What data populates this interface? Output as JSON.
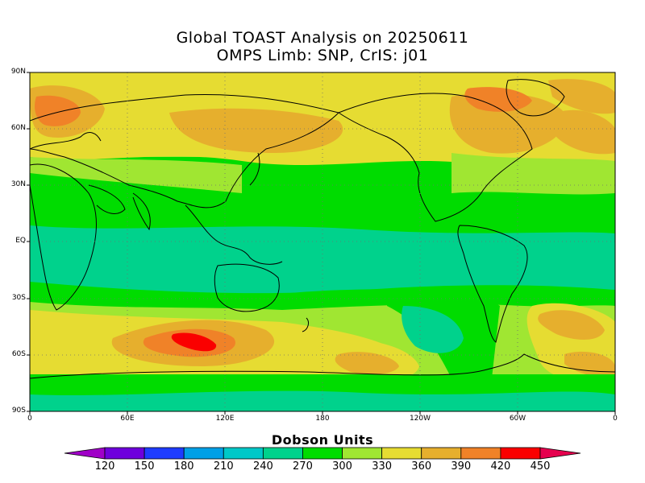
{
  "title_line1": "Global TOAST Analysis on 20250611",
  "title_line2": "OMPS Limb: SNP,  CrIS: j01",
  "latitude_labels": [
    "90N",
    "60N",
    "30N",
    "EQ",
    "30S",
    "60S",
    "90S"
  ],
  "longitude_labels": [
    "0",
    "60E",
    "120E",
    "180",
    "120W",
    "60W",
    "0"
  ],
  "colorbar": {
    "title": "Dobson Units",
    "ticks": [
      "120",
      "150",
      "180",
      "210",
      "240",
      "270",
      "300",
      "330",
      "360",
      "390",
      "420",
      "450"
    ],
    "colors": [
      "#a000c8",
      "#6e00dc",
      "#1e3cff",
      "#00a0e6",
      "#00c8c8",
      "#00d28c",
      "#00dc00",
      "#a0e632",
      "#e6dc32",
      "#e6af2d",
      "#f08228",
      "#fa0000",
      "#e6004e"
    ]
  },
  "ozone_regions": [
    {
      "band": "north-polar",
      "level": "330-390",
      "color": "#e6dc32"
    },
    {
      "band": "north-midlatitude",
      "level": "360-420",
      "color": "#e6af2d"
    },
    {
      "band": "tropics",
      "level": "240-300",
      "color": "#00d28c"
    },
    {
      "band": "south-midlatitude",
      "level": "330-450",
      "color": "#e6dc32"
    },
    {
      "band": "antarctic",
      "level": "270-330",
      "color": "#00dc00"
    }
  ]
}
